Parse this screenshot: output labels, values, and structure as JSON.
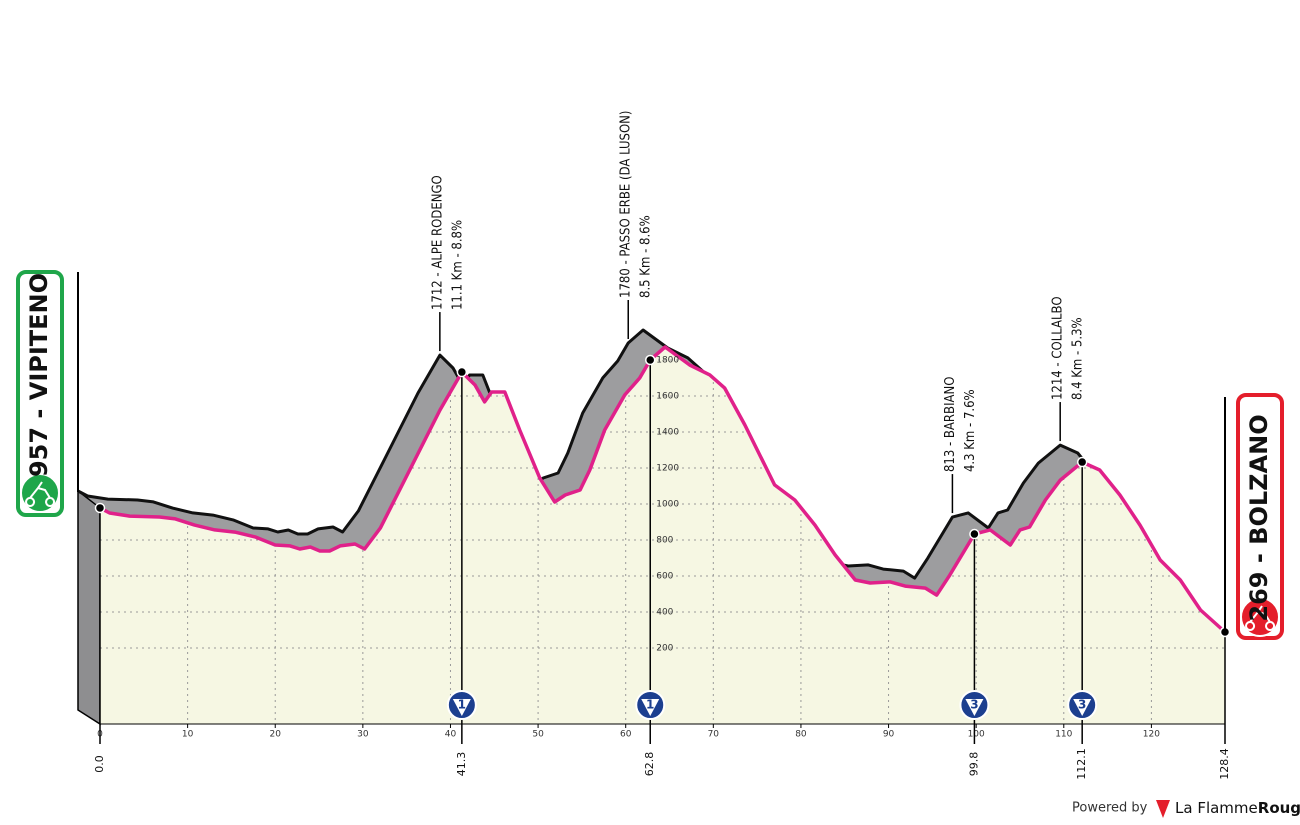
{
  "chart_data": {
    "type": "profile",
    "x": [
      0,
      1.1,
      3.4,
      6.8,
      8.6,
      10.8,
      13.1,
      15.4,
      17.7,
      20.0,
      21.7,
      22.8,
      24.0,
      25.1,
      26.2,
      27.4,
      29.1,
      30.2,
      32.0,
      34.2,
      36.5,
      38.8,
      41.3,
      42.8,
      43.9,
      44.7,
      46.2,
      47.9,
      50.2,
      51.9,
      53.1,
      54.8,
      55.9,
      57.6,
      59.9,
      61.6,
      62.8,
      64.5,
      67.3,
      69.6,
      71.3,
      73.6,
      77.0,
      79.3,
      81.6,
      83.9,
      86.2,
      87.9,
      90.2,
      91.9,
      94.2,
      95.5,
      97.0,
      99.8,
      101.6,
      103.9,
      105.0,
      106.1,
      107.9,
      109.6,
      112.1,
      114.1,
      116.4,
      118.7,
      121.0,
      123.3,
      125.6,
      128.4
    ],
    "values": [
      978,
      950,
      933,
      928,
      917,
      883,
      856,
      844,
      817,
      772,
      767,
      750,
      761,
      739,
      739,
      767,
      778,
      750,
      867,
      1078,
      1300,
      1522,
      1733,
      1661,
      1567,
      1622,
      1622,
      1411,
      1144,
      1011,
      1050,
      1078,
      1189,
      1411,
      1606,
      1700,
      1800,
      1872,
      1772,
      1717,
      1644,
      1439,
      1106,
      1022,
      883,
      717,
      578,
      561,
      567,
      544,
      533,
      494,
      606,
      833,
      856,
      772,
      856,
      872,
      1022,
      1133,
      1233,
      1189,
      1050,
      883,
      689,
      578,
      411,
      289
    ],
    "color": "#e0218a",
    "xlim": [
      0,
      128.4
    ],
    "ylim": [
      -200,
      2000
    ],
    "xticks": [
      0,
      10,
      20,
      30,
      40,
      50,
      60,
      70,
      80,
      90,
      100,
      110,
      120
    ],
    "yticks": [
      200,
      400,
      600,
      800,
      1000,
      1200,
      1400,
      1600,
      1800
    ],
    "grid": true,
    "km_marks": [
      {
        "value": 0,
        "label": "0.0"
      },
      41.3,
      62.8,
      99.8,
      112.1,
      128.4
    ],
    "climbs": [
      {
        "x": 41.3,
        "label": "1712 - ALPE RODENGO",
        "details": "11.1 Km - 8.8%",
        "category": 1
      },
      {
        "x": 62.8,
        "label": "1780 - PASSO ERBE (DA LUSON)",
        "details": "8.5 Km - 8.6%",
        "category": 1
      },
      {
        "x": 99.8,
        "label": "813 - BARBIANO",
        "details": "4.3 Km - 7.6%",
        "category": 3
      },
      {
        "x": 112.1,
        "label": "1214 - COLLALBO",
        "details": "8.4 Km - 5.3%",
        "category": 3
      }
    ],
    "start": {
      "label": "957 - VIPITENO"
    },
    "finish": {
      "label": "269 - BOLZANO"
    }
  },
  "footer": {
    "powered_by": "Powered by",
    "brand": "La Flamme",
    "brand_bold": "Rouge"
  }
}
